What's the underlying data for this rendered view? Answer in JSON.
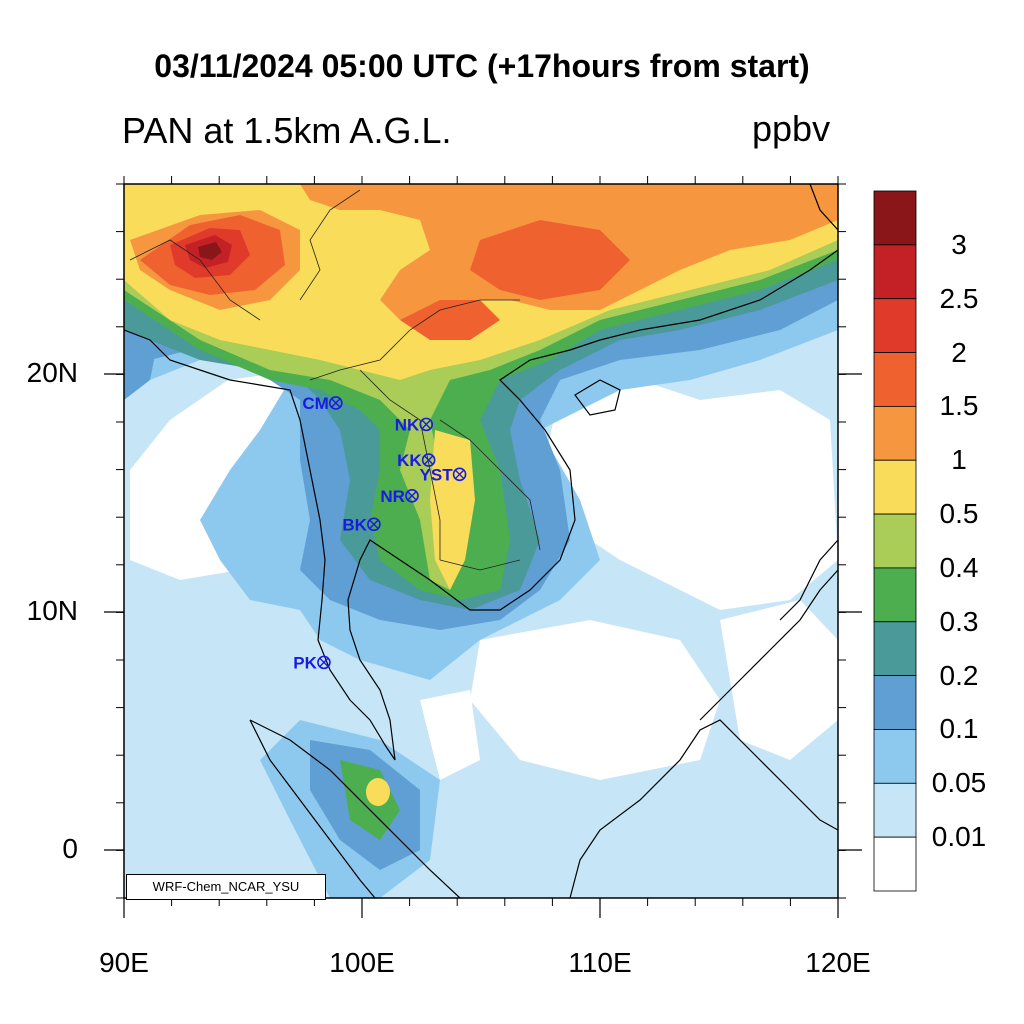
{
  "title": "03/11/2024 05:00 UTC (+17hours from start)",
  "variable_label": "PAN at 1.5km A.G.L.",
  "units_label": "ppbv",
  "credit": "WRF-Chem_NCAR_YSU",
  "axes": {
    "lat_ticks": [
      "20N",
      "10N",
      "0"
    ],
    "lon_ticks": [
      "90E",
      "100E",
      "110E",
      "120E"
    ],
    "lon_range": [
      90,
      120
    ],
    "lat_range": [
      -2,
      28
    ]
  },
  "colorbar": {
    "levels": [
      "3",
      "2.5",
      "2",
      "1.5",
      "1",
      "0.5",
      "0.4",
      "0.3",
      "0.2",
      "0.1",
      "0.05",
      "0.01"
    ],
    "colors": [
      "#8b1619",
      "#c42126",
      "#e03a2b",
      "#ef6230",
      "#f6973f",
      "#f9dc5a",
      "#a9cd56",
      "#4cae4f",
      "#4b9a9a",
      "#5f9fd3",
      "#8dc8ef",
      "#c6e6f7",
      "#ffffff"
    ]
  },
  "stations": [
    {
      "label": "CM",
      "lon": 98.9,
      "lat": 18.8
    },
    {
      "label": "NK",
      "lon": 102.7,
      "lat": 17.9
    },
    {
      "label": "KK",
      "lon": 102.8,
      "lat": 16.4
    },
    {
      "label": "YST",
      "lon": 104.1,
      "lat": 15.8
    },
    {
      "label": "NR",
      "lon": 102.1,
      "lat": 14.9
    },
    {
      "label": "BK",
      "lon": 100.5,
      "lat": 13.7
    },
    {
      "label": "PK",
      "lon": 98.4,
      "lat": 7.9
    }
  ]
}
